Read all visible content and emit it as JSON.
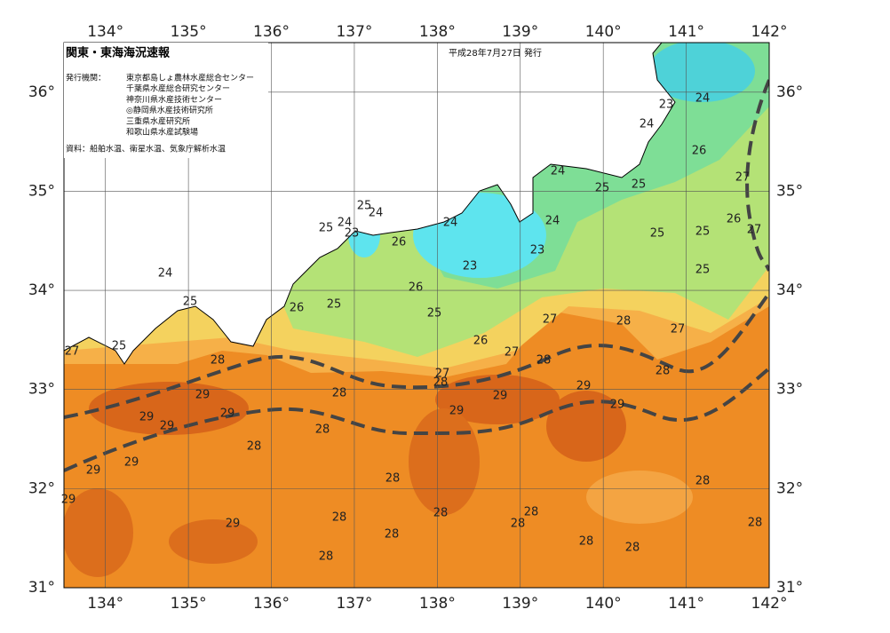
{
  "map": {
    "title": "関東・東海海況速報",
    "date": "平成28年7月27日 発行",
    "issuer_heading": "発行機関：",
    "issuers": [
      "東京都島しょ農林水産総合センター",
      "千葉県水産総合研究センター",
      "神奈川県水産技術センター",
      "◎静岡県水産技術研究所",
      "三重県水産研究所",
      "和歌山県水産試験場"
    ],
    "source": "資料：船舶水温、衛星水温、気象庁解析水温",
    "xlim": [
      133.5,
      142
    ],
    "ylim": [
      31,
      36.5
    ],
    "xticks": [
      {
        "value": 134,
        "label": "134°"
      },
      {
        "value": 135,
        "label": "135°"
      },
      {
        "value": 136,
        "label": "136°"
      },
      {
        "value": 137,
        "label": "137°"
      },
      {
        "value": 138,
        "label": "138°"
      },
      {
        "value": 139,
        "label": "139°"
      },
      {
        "value": 140,
        "label": "140°"
      },
      {
        "value": 141,
        "label": "141°"
      },
      {
        "value": 142,
        "label": "142°"
      }
    ],
    "yticks": [
      {
        "value": 31,
        "label": "31°"
      },
      {
        "value": 32,
        "label": "32°"
      },
      {
        "value": 33,
        "label": "33°"
      },
      {
        "value": 34,
        "label": "34°"
      },
      {
        "value": 35,
        "label": "35°"
      },
      {
        "value": 36,
        "label": "36°"
      }
    ],
    "contour_labels": [
      23,
      24,
      24,
      26,
      27,
      24,
      25,
      25,
      24,
      26,
      27,
      25,
      25,
      25,
      24,
      23,
      23,
      25,
      24,
      24,
      25,
      23,
      26,
      26,
      25,
      26,
      25,
      27,
      28,
      27,
      26,
      27,
      28,
      24,
      25,
      25,
      27,
      28,
      27,
      28,
      28,
      29,
      28,
      29,
      29,
      29,
      29,
      29,
      29,
      29,
      28,
      28,
      29,
      29,
      29,
      28,
      28,
      28,
      28,
      28,
      28,
      29,
      28,
      28,
      28,
      28,
      28
    ]
  }
}
